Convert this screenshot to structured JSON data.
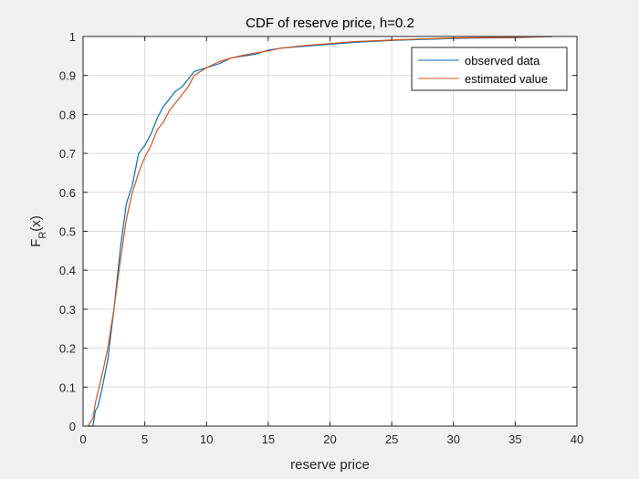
{
  "chart_data": {
    "type": "line",
    "title": "CDF of reserve price, h=0.2",
    "xlabel": "reserve price",
    "ylabel_main": "F",
    "ylabel_sub": "R",
    "ylabel_rest": "(x)",
    "xlim": [
      0,
      40
    ],
    "ylim": [
      0,
      1
    ],
    "xticks": [
      0,
      5,
      10,
      15,
      20,
      25,
      30,
      35,
      40
    ],
    "xtick_labels": [
      "0",
      "5",
      "10",
      "15",
      "20",
      "25",
      "30",
      "35",
      "40"
    ],
    "yticks": [
      0,
      0.1,
      0.2,
      0.3,
      0.4,
      0.5,
      0.6,
      0.7,
      0.8,
      0.9,
      1
    ],
    "ytick_labels": [
      "0",
      "0.1",
      "0.2",
      "0.3",
      "0.4",
      "0.5",
      "0.6",
      "0.7",
      "0.8",
      "0.9",
      "1"
    ],
    "grid": true,
    "legend_position": "top-right",
    "series": [
      {
        "name": "observed data",
        "color": "#0072BD",
        "x": [
          0.4,
          0.8,
          1.0,
          1.2,
          1.5,
          2.0,
          2.5,
          3.0,
          3.5,
          4.0,
          4.5,
          5.0,
          5.5,
          6.0,
          6.5,
          7.0,
          7.5,
          8.0,
          8.5,
          9.0,
          10.0,
          11.0,
          12.0,
          13.0,
          14.0,
          15.0,
          16.0,
          18.0,
          20.0,
          22.0,
          25.0,
          28.0,
          30.0,
          32.0,
          35.0,
          38.0
        ],
        "y": [
          0.0,
          0.0,
          0.04,
          0.05,
          0.09,
          0.17,
          0.3,
          0.45,
          0.57,
          0.62,
          0.7,
          0.72,
          0.75,
          0.79,
          0.82,
          0.84,
          0.86,
          0.87,
          0.89,
          0.91,
          0.92,
          0.93,
          0.945,
          0.95,
          0.955,
          0.965,
          0.97,
          0.975,
          0.98,
          0.985,
          0.99,
          0.993,
          0.995,
          0.996,
          0.997,
          1.0
        ]
      },
      {
        "name": "estimated value",
        "color": "#D95319",
        "x": [
          0.4,
          0.8,
          1.0,
          1.3,
          1.6,
          2.0,
          2.5,
          3.0,
          3.5,
          4.0,
          4.5,
          5.0,
          5.5,
          6.0,
          6.5,
          7.0,
          7.5,
          8.0,
          8.5,
          9.0,
          10.0,
          11.0,
          12.0,
          13.0,
          14.0,
          15.0,
          16.0,
          18.0,
          20.0,
          22.0,
          25.0,
          28.0,
          30.0,
          32.0,
          35.0,
          38.0
        ],
        "y": [
          0.0,
          0.02,
          0.06,
          0.1,
          0.14,
          0.2,
          0.3,
          0.42,
          0.53,
          0.6,
          0.65,
          0.69,
          0.72,
          0.76,
          0.78,
          0.81,
          0.83,
          0.85,
          0.87,
          0.9,
          0.92,
          0.935,
          0.945,
          0.952,
          0.958,
          0.963,
          0.97,
          0.977,
          0.982,
          0.987,
          0.991,
          0.994,
          0.996,
          0.997,
          0.998,
          1.0
        ]
      }
    ]
  }
}
